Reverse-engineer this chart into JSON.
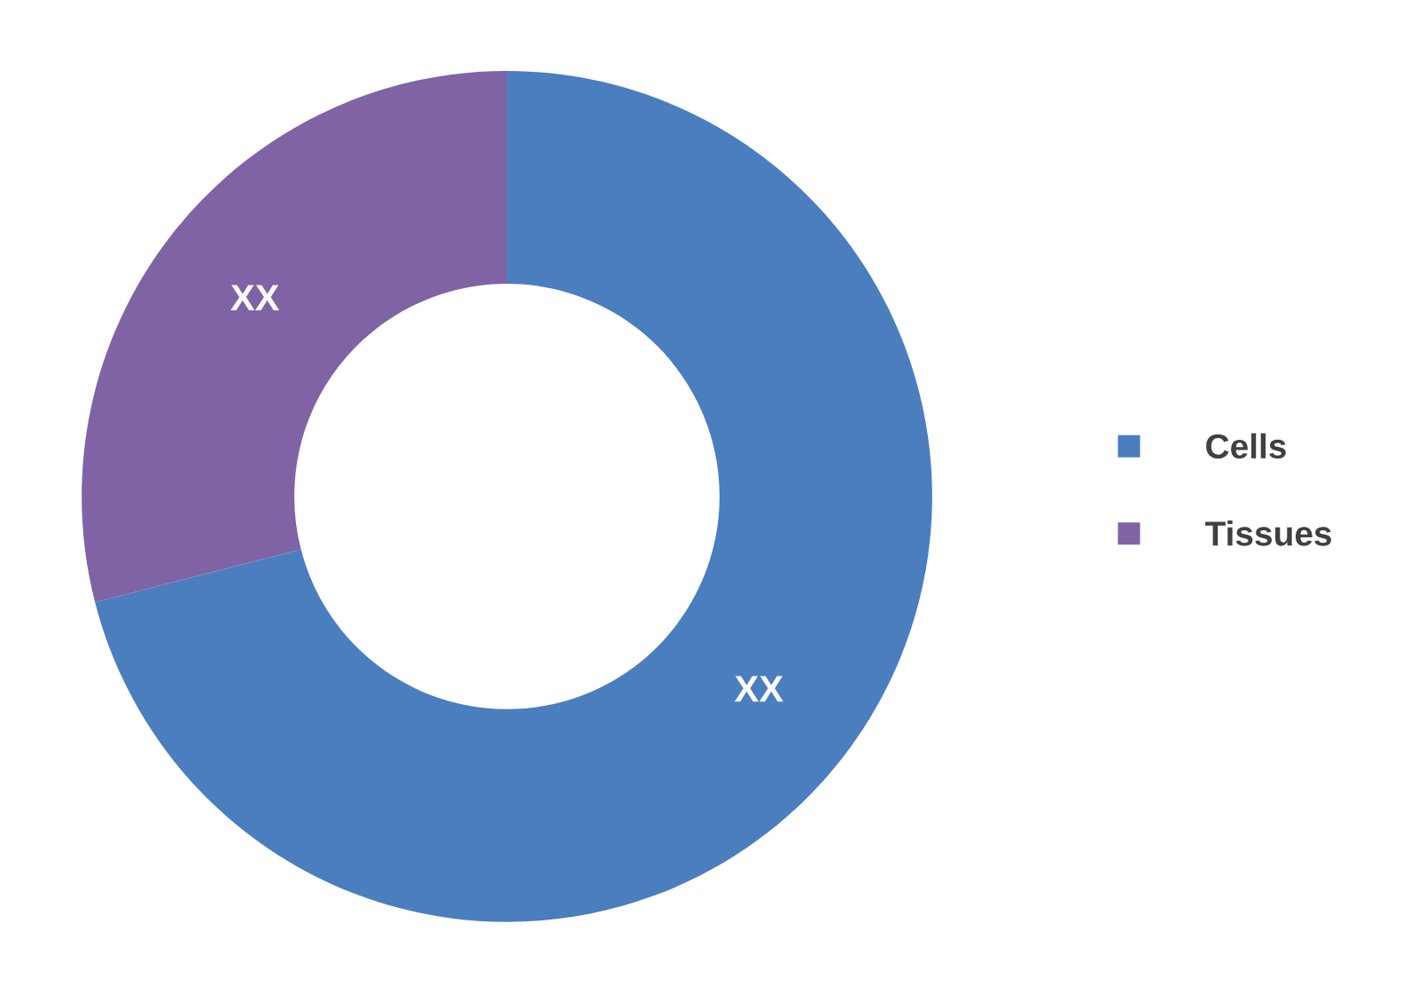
{
  "chart_data": {
    "type": "donut",
    "categories": [
      "Cells",
      "Tissues"
    ],
    "values": [
      71,
      29
    ],
    "colors": [
      "#4a7ebf",
      "#8063a5"
    ],
    "value_labels": [
      "XX",
      "XX"
    ],
    "legend": "right"
  }
}
